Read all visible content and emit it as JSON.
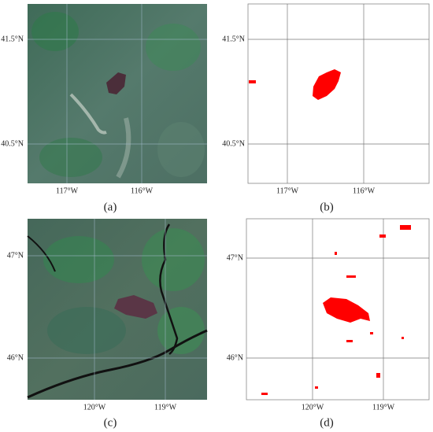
{
  "panels": [
    {
      "label": "(a)",
      "lat_ticks": [
        "41.5°N",
        "40.5°N"
      ],
      "lon_ticks": [
        "117°W",
        "116°W"
      ]
    },
    {
      "label": "(b)",
      "lat_ticks": [
        "41.5°N",
        "40.5°N"
      ],
      "lon_ticks": [
        "117°W",
        "116°W"
      ]
    },
    {
      "label": "(c)",
      "lat_ticks": [
        "47°N",
        "46°N"
      ],
      "lon_ticks": [
        "120°W",
        "119°W"
      ]
    },
    {
      "label": "(d)",
      "lat_ticks": [
        "47°N",
        "46°N"
      ],
      "lon_ticks": [
        "120°W",
        "119°W"
      ]
    }
  ]
}
